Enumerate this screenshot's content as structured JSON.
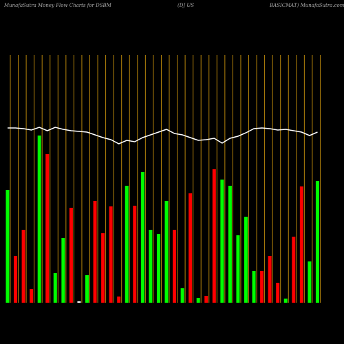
{
  "chart_data": {
    "type": "bar",
    "title": "MunafaSutra  Money Flow  Charts for DSBM",
    "subtitle": "(DJ US",
    "title_right": "BASICMAT) MunafaSutra.com",
    "categories": [
      null,
      null,
      null,
      null,
      null,
      null,
      null,
      null,
      null,
      null,
      null,
      null,
      null,
      null,
      null,
      null,
      null,
      null,
      null,
      null,
      null,
      null,
      null,
      null,
      null,
      null,
      null,
      null,
      null,
      null,
      null,
      null,
      null,
      null,
      null,
      null,
      null,
      null,
      null,
      null
    ],
    "values": [
      164,
      68,
      106,
      20,
      243,
      216,
      43,
      94,
      138,
      2,
      40,
      148,
      101,
      140,
      9,
      170,
      141,
      190,
      106,
      100,
      148,
      106,
      21,
      159,
      7,
      10,
      194,
      179,
      170,
      98,
      125,
      46,
      46,
      68,
      29,
      6,
      96,
      169,
      60,
      177
    ],
    "colors": [
      "#00ff00",
      "#ff0000",
      "#ff0000",
      "#ff0000",
      "#00ff00",
      "#ff0000",
      "#00ff00",
      "#00ff00",
      "#ff0000",
      "#ffffff",
      "#00ff00",
      "#ff0000",
      "#ff0000",
      "#ff0000",
      "#ff0000",
      "#00ff00",
      "#ff0000",
      "#00ff00",
      "#00ff00",
      "#00ff00",
      "#00ff00",
      "#ff0000",
      "#00ff00",
      "#ff0000",
      "#00ff00",
      "#ff0000",
      "#ff0000",
      "#00ff00",
      "#00ff00",
      "#00ff00",
      "#00ff00",
      "#00ff00",
      "#ff0000",
      "#ff0000",
      "#ff0000",
      "#00ff00",
      "#ff0000",
      "#ff0000",
      "#00ff00",
      "#00ff00"
    ],
    "line_values": [
      254,
      254,
      253,
      251,
      255,
      250,
      255,
      252,
      250,
      249,
      248,
      244,
      240,
      237,
      231,
      236,
      234,
      240,
      244,
      248,
      252,
      246,
      244,
      240,
      236,
      237,
      239,
      232,
      239,
      242,
      247,
      253,
      254,
      253,
      251,
      252,
      250,
      248,
      243,
      248
    ],
    "line_color": "#ffffff",
    "ylim": [
      0,
      360
    ]
  }
}
